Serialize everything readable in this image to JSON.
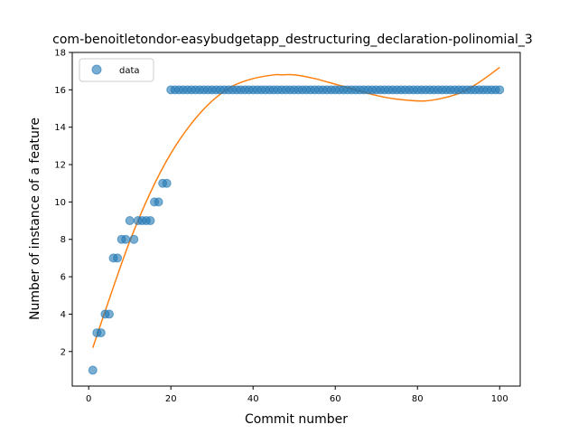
{
  "chart_data": {
    "type": "scatter",
    "title": "com-benoitletondor-easybudgetapp_destructuring_declaration-polinomial_3",
    "xlabel": "Commit number",
    "ylabel": "Number of instance of a feature",
    "xlim": [
      -4,
      105
    ],
    "ylim": [
      0.15,
      18
    ],
    "xticks": [
      0,
      20,
      40,
      60,
      80,
      100
    ],
    "yticks": [
      2,
      4,
      6,
      8,
      10,
      12,
      14,
      16,
      18
    ],
    "grid": false,
    "legend_position": "top-left",
    "series": [
      {
        "name": "data",
        "kind": "points",
        "color": "#1f77b4",
        "x": [
          1,
          2,
          3,
          4,
          5,
          6,
          7,
          8,
          9,
          10,
          11,
          12,
          13,
          14,
          15,
          16,
          17,
          18,
          19,
          20,
          21,
          22,
          23,
          24,
          25,
          26,
          27,
          28,
          29,
          30,
          31,
          32,
          33,
          34,
          35,
          36,
          37,
          38,
          39,
          40,
          41,
          42,
          43,
          44,
          45,
          46,
          47,
          48,
          49,
          50,
          51,
          52,
          53,
          54,
          55,
          56,
          57,
          58,
          59,
          60,
          61,
          62,
          63,
          64,
          65,
          66,
          67,
          68,
          69,
          70,
          71,
          72,
          73,
          74,
          75,
          76,
          77,
          78,
          79,
          80,
          81,
          82,
          83,
          84,
          85,
          86,
          87,
          88,
          89,
          90,
          91,
          92,
          93,
          94,
          95,
          96,
          97,
          98,
          99,
          100
        ],
        "y": [
          1,
          3,
          3,
          4,
          4,
          7,
          7,
          8,
          8,
          9,
          8,
          9,
          9,
          9,
          9,
          10,
          10,
          11,
          11,
          16,
          16,
          16,
          16,
          16,
          16,
          16,
          16,
          16,
          16,
          16,
          16,
          16,
          16,
          16,
          16,
          16,
          16,
          16,
          16,
          16,
          16,
          16,
          16,
          16,
          16,
          16,
          16,
          16,
          16,
          16,
          16,
          16,
          16,
          16,
          16,
          16,
          16,
          16,
          16,
          16,
          16,
          16,
          16,
          16,
          16,
          16,
          16,
          16,
          16,
          16,
          16,
          16,
          16,
          16,
          16,
          16,
          16,
          16,
          16,
          16,
          16,
          16,
          16,
          16,
          16,
          16,
          16,
          16,
          16,
          16,
          16,
          16,
          16,
          16,
          16,
          16,
          16,
          16,
          16,
          16
        ]
      },
      {
        "kind": "fit-curve",
        "color": "#ff7f0e",
        "x": [
          1,
          5,
          10,
          15,
          20,
          25,
          30,
          35,
          40,
          45,
          47,
          50,
          55,
          60,
          65,
          70,
          75,
          81,
          85,
          90,
          95,
          100
        ],
        "y": [
          2.2,
          4.8,
          7.9,
          10.5,
          12.6,
          14.2,
          15.4,
          16.2,
          16.6,
          16.8,
          16.8,
          16.8,
          16.6,
          16.3,
          16.0,
          15.7,
          15.5,
          15.4,
          15.5,
          15.8,
          16.4,
          17.2
        ]
      }
    ]
  }
}
